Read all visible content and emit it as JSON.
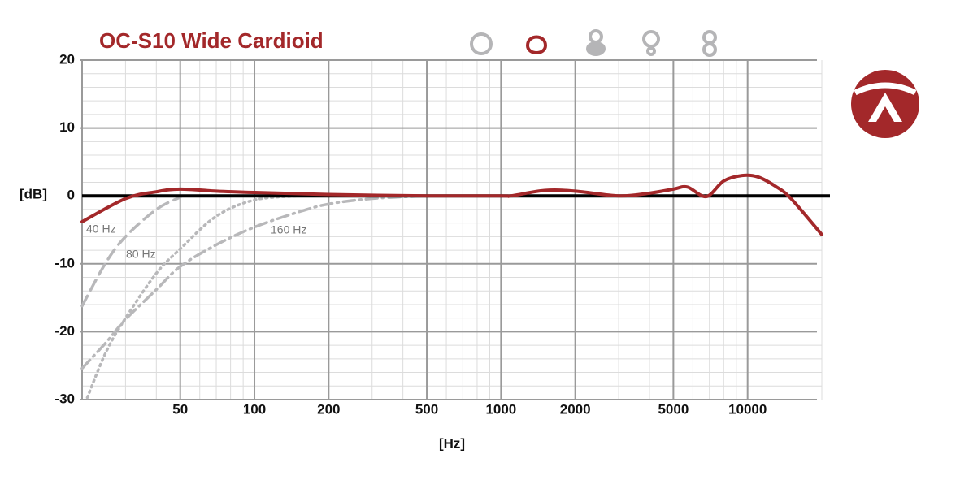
{
  "chart_data": {
    "type": "line",
    "title": "OC-S10 Wide Cardioid",
    "x_label": "[Hz]",
    "y_label": "[dB]",
    "xscale": "log",
    "xlim": [
      20,
      20000
    ],
    "ylim": [
      -30,
      20
    ],
    "xticks": [
      50,
      100,
      200,
      500,
      1000,
      2000,
      5000,
      10000
    ],
    "yticks": [
      20,
      10,
      0,
      -10,
      -20,
      -30
    ],
    "grid": true,
    "minor_grid": true,
    "series": [
      {
        "name": "40 Hz",
        "color": "#b8b8ba",
        "style": "dashed",
        "x": [
          20,
          25,
          30,
          40,
          50
        ],
        "values": [
          -16.2,
          -9.8,
          -6,
          -2,
          -0.2
        ]
      },
      {
        "name": "80 Hz",
        "color": "#b8b8ba",
        "style": "dotted",
        "x": [
          21,
          25,
          30,
          40,
          50,
          70,
          100,
          150
        ],
        "values": [
          -29.7,
          -23,
          -18,
          -11.4,
          -7.8,
          -3,
          -0.6,
          0
        ]
      },
      {
        "name": "160 Hz",
        "color": "#b8b8ba",
        "style": "dashdot",
        "x": [
          20,
          25,
          30,
          40,
          50,
          70,
          100,
          150,
          200,
          300,
          500
        ],
        "values": [
          -25.4,
          -21.6,
          -18.2,
          -13.8,
          -10.4,
          -7.2,
          -4.6,
          -2.4,
          -1.2,
          -0.4,
          0
        ]
      },
      {
        "color": "#a3282a",
        "style": "solid",
        "x": [
          20,
          30,
          40,
          50,
          70,
          100,
          200,
          500,
          1000,
          1100,
          1500,
          2000,
          3000,
          4000,
          5000,
          5700,
          6800,
          8000,
          9500,
          11000,
          13000,
          15000,
          20000
        ],
        "values": [
          -3.8,
          -0.4,
          0.6,
          1.0,
          0.7,
          0.5,
          0.2,
          0,
          0,
          0,
          0.8,
          0.7,
          0,
          0.4,
          1.0,
          1.3,
          -0.1,
          2.2,
          3.0,
          2.8,
          1.4,
          -0.4,
          -5.7
        ]
      }
    ]
  }
}
